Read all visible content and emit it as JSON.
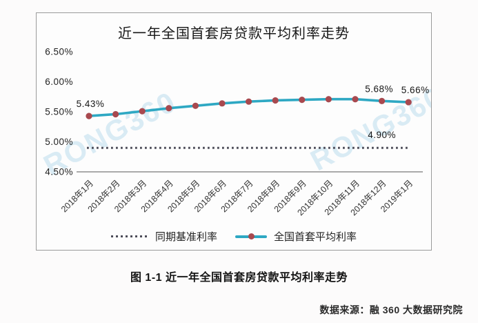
{
  "chart": {
    "title": "近一年全国首套房贷款平均利率走势",
    "caption": "图 1-1 近一年全国首套房贷款平均利率走势",
    "source": "数据来源：融 360 大数据研究院",
    "watermark": "RONG360"
  },
  "legend": {
    "benchmark_label": "同期基准利率",
    "series_label": "全国首套平均利率"
  },
  "colors": {
    "series_line": "#2ea8c3",
    "series_marker": "#a8494f",
    "benchmark_dotted": "#4c4c58",
    "axis_line": "#7a7a7a",
    "tick_text": "#1f1f1f",
    "annotation_text": "#161616",
    "watermark": "#8fc6e4",
    "frame_border": "#9a9a9a"
  },
  "chart_data": {
    "type": "line",
    "title": "近一年全国首套房贷款平均利率走势",
    "x_labels": [
      "2018年1月",
      "2018年2月",
      "2018年3月",
      "2018年4月",
      "2018年5月",
      "2018年6月",
      "2018年7月",
      "2018年8月",
      "2018年9月",
      "2018年10月",
      "2018年11月",
      "2018年12月",
      "2019年1月"
    ],
    "series": [
      {
        "name": "全国首套平均利率",
        "style": "solid",
        "color": "#2ea8c3",
        "marker": "circle",
        "marker_color": "#a8494f",
        "values": [
          5.43,
          5.46,
          5.51,
          5.56,
          5.6,
          5.64,
          5.67,
          5.69,
          5.7,
          5.71,
          5.71,
          5.68,
          5.66
        ]
      },
      {
        "name": "同期基准利率",
        "style": "dotted",
        "color": "#4c4c58",
        "marker": "none",
        "values": [
          4.9,
          4.9,
          4.9,
          4.9,
          4.9,
          4.9,
          4.9,
          4.9,
          4.9,
          4.9,
          4.9,
          4.9,
          4.9
        ]
      }
    ],
    "y_ticks": [
      6.5,
      6.0,
      5.5,
      5.0,
      4.5
    ],
    "y_tick_labels": [
      "6.50%",
      "6.00%",
      "5.50%",
      "5.00%",
      "4.50%"
    ],
    "ylim": [
      4.5,
      6.5
    ],
    "grid": false,
    "legend_position": "bottom",
    "annotations": [
      {
        "text": "5.43%",
        "series": 0,
        "point_index": 0
      },
      {
        "text": "5.68%",
        "series": 0,
        "point_index": 11
      },
      {
        "text": "5.66%",
        "series": 0,
        "point_index": 12
      },
      {
        "text": "4.90%",
        "series": 1,
        "point_index": 11
      }
    ]
  }
}
